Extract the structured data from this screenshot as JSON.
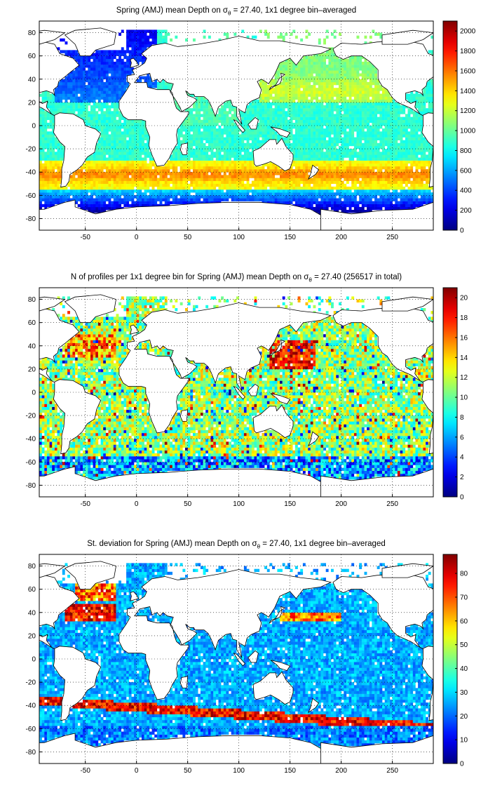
{
  "panels": [
    {
      "title_pre": "Spring (AMJ) mean Depth on σ",
      "title_sub": "θ",
      "title_post": " = 27.40, 1x1 degree bin–averaged",
      "colorbar": {
        "min": 0,
        "max": 2100,
        "ticks": [
          "0",
          "200",
          "400",
          "600",
          "800",
          "1000",
          "1200",
          "1400",
          "1600",
          "1800",
          "2000"
        ],
        "tick_values": [
          0,
          200,
          400,
          600,
          800,
          1000,
          1200,
          1400,
          1600,
          1800,
          2000
        ]
      }
    },
    {
      "title_pre": "N of profiles per 1x1 degree bin for Spring (AMJ) mean Depth on σ",
      "title_sub": "θ",
      "title_post": " = 27.40 (256517 in total)",
      "colorbar": {
        "min": 0,
        "max": 21,
        "ticks": [
          "0",
          "2",
          "4",
          "6",
          "8",
          "10",
          "12",
          "14",
          "16",
          "18",
          "20"
        ],
        "tick_values": [
          0,
          2,
          4,
          6,
          8,
          10,
          12,
          14,
          16,
          18,
          20
        ]
      }
    },
    {
      "title_pre": "St. deviation for Spring (AMJ) mean Depth on σ",
      "title_sub": "θ",
      "title_post": " = 27.40, 1x1 degree bin–averaged",
      "colorbar": {
        "min": 0,
        "max": 88,
        "ticks": [
          "0",
          "10",
          "20",
          "30",
          "40",
          "50",
          "60",
          "70",
          "80"
        ],
        "tick_values": [
          0,
          10,
          20,
          30,
          40,
          50,
          60,
          70,
          80
        ]
      }
    }
  ],
  "axes": {
    "x_ticks": [
      "-50",
      "0",
      "50",
      "100",
      "150",
      "200",
      "250"
    ],
    "x_values": [
      -50,
      0,
      50,
      100,
      150,
      200,
      250
    ],
    "x_range": [
      -95,
      290
    ],
    "y_ticks": [
      "80",
      "60",
      "40",
      "20",
      "0",
      "-20",
      "-40",
      "-60",
      "-80"
    ],
    "y_values": [
      80,
      60,
      40,
      20,
      0,
      -20,
      -40,
      -60,
      -80
    ],
    "y_range": [
      -90,
      90
    ],
    "grid": "dotted"
  },
  "colors": {
    "land": "#ffffff",
    "coast": "#000000",
    "colormap": "jet"
  }
}
